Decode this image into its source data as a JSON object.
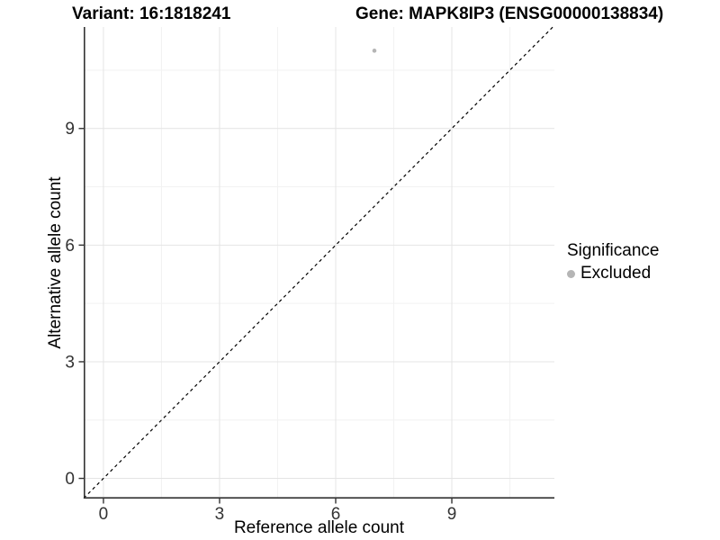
{
  "titles": {
    "variant": "Variant: 16:1818241",
    "gene": "Gene: MAPK8IP3 (ENSG00000138834)"
  },
  "legend": {
    "title": "Significance",
    "items": [
      {
        "label": "Excluded",
        "color": "#b5b5b5"
      }
    ]
  },
  "chart_data": {
    "type": "scatter",
    "title": "Variant: 16:1818241 | Gene: MAPK8IP3 (ENSG00000138834)",
    "xlabel": "Reference allele count",
    "ylabel": "Alternative allele count",
    "xlim": [
      -0.51,
      11.65
    ],
    "ylim": [
      -0.52,
      11.61
    ],
    "x_ticks": [
      0,
      3,
      6,
      9
    ],
    "y_ticks": [
      0,
      3,
      6,
      9
    ],
    "x_minor_ticks": [
      1.5,
      4.5,
      7.5,
      10.5
    ],
    "y_minor_ticks": [
      1.5,
      4.5,
      7.5,
      10.5
    ],
    "grid": true,
    "legend_position": "right",
    "series": [
      {
        "name": "Excluded",
        "color": "#b5b5b5",
        "point_radius": 2.3,
        "points": [
          {
            "x": 7,
            "y": 11
          }
        ]
      }
    ],
    "reference_line": {
      "kind": "identity",
      "slope": 1,
      "intercept": 0,
      "style": "dashed",
      "color": "#000000"
    },
    "colors": {
      "grid_major": "#e4e4e4",
      "grid_minor": "#f2f2f2",
      "axis_line": "#333333",
      "tick_label": "#333333"
    }
  }
}
